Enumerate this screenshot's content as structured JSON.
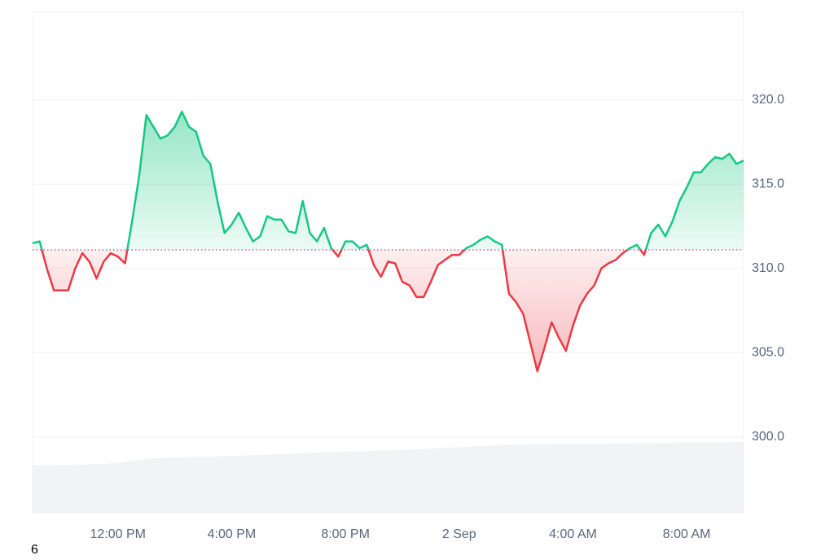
{
  "chart_data": {
    "type": "baseline-line",
    "x": [
      0,
      0.25,
      0.5,
      0.75,
      1,
      1.25,
      1.5,
      1.75,
      2,
      2.25,
      2.5,
      2.75,
      3,
      3.25,
      3.5,
      3.75,
      4,
      4.25,
      4.5,
      4.75,
      5,
      5.25,
      5.5,
      5.75,
      6,
      6.25,
      6.5,
      6.75,
      7,
      7.25,
      7.5,
      7.75,
      8,
      8.25,
      8.5,
      8.75,
      9,
      9.25,
      9.5,
      9.75,
      10,
      10.25,
      10.5,
      10.75,
      11,
      11.25,
      11.5,
      11.75,
      12,
      12.25,
      12.5,
      12.75,
      13,
      13.25,
      13.5,
      13.75,
      14,
      14.25,
      14.5,
      14.75,
      15,
      15.25,
      15.5,
      15.75,
      16,
      16.25,
      16.5,
      16.75,
      17,
      17.25,
      17.5,
      17.75,
      18,
      18.25,
      18.5,
      18.75,
      19,
      19.25,
      19.5,
      19.75,
      20,
      20.25,
      20.5,
      20.75,
      21,
      21.25,
      21.5,
      21.75,
      22,
      22.25,
      22.5,
      22.75,
      23,
      23.25,
      23.5,
      23.75,
      24,
      24.25,
      24.5,
      24.75,
      25
    ],
    "values": [
      311.5,
      311.6,
      310.0,
      308.7,
      308.7,
      308.7,
      310.0,
      310.9,
      310.4,
      309.4,
      310.4,
      310.9,
      310.7,
      310.3,
      312.8,
      315.5,
      319.1,
      318.4,
      317.7,
      317.9,
      318.4,
      319.3,
      318.4,
      318.1,
      316.7,
      316.2,
      314.0,
      312.1,
      312.6,
      313.3,
      312.4,
      311.6,
      311.9,
      313.1,
      312.9,
      312.9,
      312.2,
      312.1,
      314.0,
      312.1,
      311.6,
      312.4,
      311.2,
      310.7,
      311.6,
      311.6,
      311.2,
      311.4,
      310.2,
      309.5,
      310.4,
      310.3,
      309.2,
      309.0,
      308.3,
      308.3,
      309.2,
      310.2,
      310.5,
      310.8,
      310.8,
      311.2,
      311.4,
      311.7,
      311.9,
      311.6,
      311.4,
      308.5,
      308.0,
      307.3,
      305.6,
      303.9,
      305.3,
      306.8,
      305.9,
      305.1,
      306.6,
      307.8,
      308.5,
      309.0,
      310.0,
      310.3,
      310.5,
      310.9,
      311.2,
      311.4,
      310.8,
      312.1,
      312.6,
      311.9,
      312.8,
      314.0,
      314.8,
      315.7,
      315.7,
      316.2,
      316.6,
      316.5,
      316.8,
      316.2,
      316.4
    ],
    "baseline": 311.1,
    "up_color": "#16c784",
    "down_color": "#ea3943",
    "xlim": [
      0,
      25
    ],
    "xticks": [
      {
        "value": 3,
        "label": "12:00 PM"
      },
      {
        "value": 7,
        "label": "4:00 PM"
      },
      {
        "value": 11,
        "label": "8:00 PM"
      },
      {
        "value": 15,
        "label": "2 Sep"
      },
      {
        "value": 19,
        "label": "4:00 AM"
      },
      {
        "value": 23,
        "label": "8:00 AM"
      }
    ],
    "ylim": [
      295.5,
      325.2
    ],
    "yticks": [
      {
        "value": 300,
        "label": "300.0"
      },
      {
        "value": 305,
        "label": "305.0"
      },
      {
        "value": 310,
        "label": "310.0"
      },
      {
        "value": 315,
        "label": "315.0"
      },
      {
        "value": 320,
        "label": "320.0"
      }
    ],
    "grid": true
  },
  "footnote": "6"
}
